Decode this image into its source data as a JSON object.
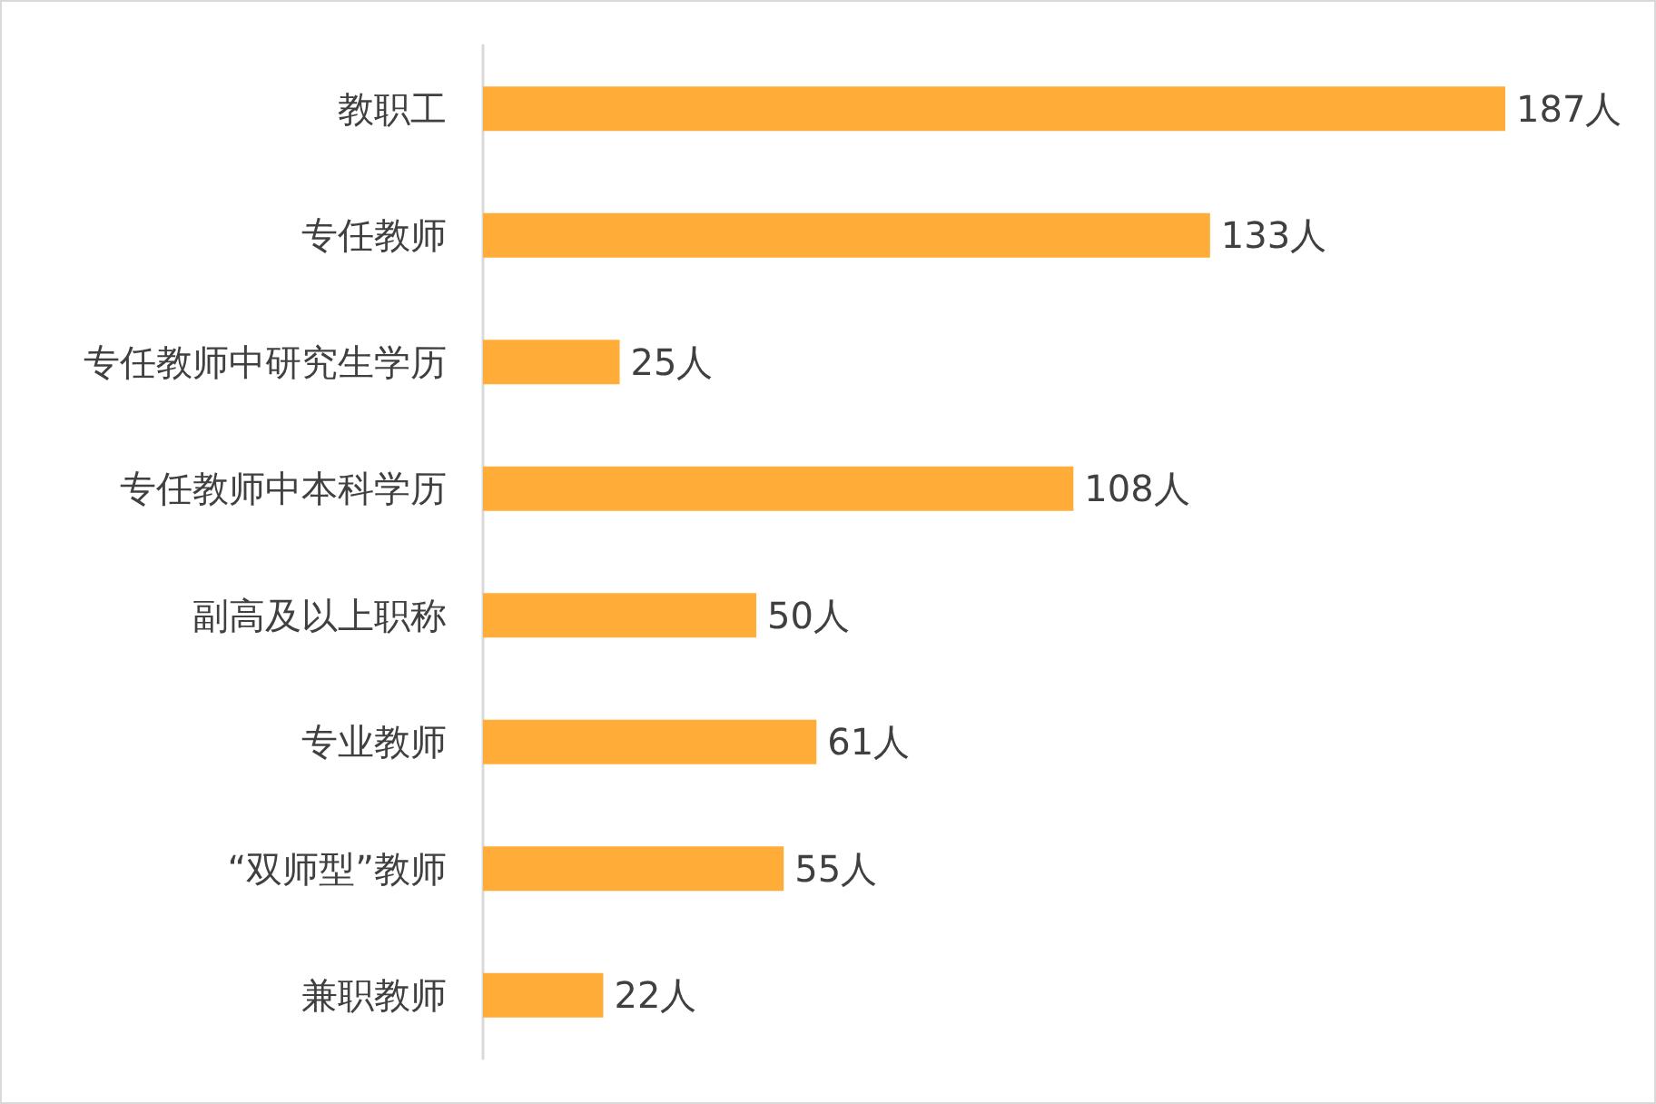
{
  "chart_data": {
    "type": "bar",
    "orientation": "horizontal",
    "categories": [
      "教职工",
      "专任教师",
      "专任教师中研究生学历",
      "专任教师中本科学历",
      "副高及以上职称",
      "专业教师",
      "“双师型”教师",
      "兼职教师"
    ],
    "values": [
      187,
      133,
      25,
      108,
      50,
      61,
      55,
      22
    ],
    "value_labels": [
      "187人",
      "133人",
      "25人",
      "108人",
      "50人",
      "61人",
      "55人",
      "22人"
    ],
    "color": "#ffac38"
  }
}
